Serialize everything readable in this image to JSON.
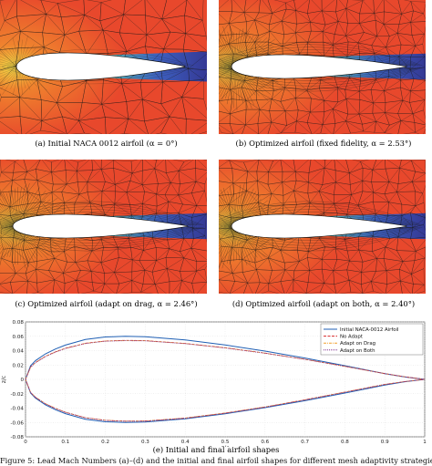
{
  "panels": [
    {
      "caption": "(a)  Initial NACA 0012 airfoil (α = 0°)"
    },
    {
      "caption": "(b)  Optimized airfoil (fixed fidelity, α = 2.53°)"
    },
    {
      "caption": "(c)  Optimized airfoil (adapt on drag, α = 2.46°)"
    },
    {
      "caption": "(d)  Optimized airfoil (adapt on both, α = 2.40°)"
    }
  ],
  "shapes_caption": "(e)  Initial and final airfoil shapes",
  "figure_caption": "Figure 5: Lead Mach Numbers (a)–(d) and the initial and final airfoil shapes for different mesh adaptivity strategies",
  "colors": {
    "field": "#e8482c",
    "mesh": "#1a1a1a",
    "wake": "#1f63d8",
    "airfoil": "#ffffff"
  },
  "chart_data": {
    "type": "line",
    "xlabel": "x/c",
    "ylabel": "z/c",
    "xlim": [
      0,
      1
    ],
    "ylim": [
      -0.08,
      0.08
    ],
    "xticks": [
      "0",
      "0.1",
      "0.2",
      "0.3",
      "0.4",
      "0.5",
      "0.6",
      "0.7",
      "0.8",
      "0.9",
      "1"
    ],
    "yticks": [
      "0.08",
      "0.06",
      "0.04",
      "0.02",
      "0",
      "-0.02",
      "-0.04",
      "-0.06",
      "-0.08"
    ],
    "grid": true,
    "legend_position": "top-right",
    "x": [
      0,
      0.0125,
      0.025,
      0.05,
      0.075,
      0.1,
      0.15,
      0.2,
      0.25,
      0.3,
      0.4,
      0.5,
      0.6,
      0.7,
      0.8,
      0.9,
      0.95,
      1.0
    ],
    "series": [
      {
        "name": "Initial NACA-0012 Airfoil",
        "color": "#1f5fb4",
        "dash": "solid",
        "upper": [
          0,
          0.0189,
          0.0261,
          0.0355,
          0.0423,
          0.0477,
          0.0555,
          0.059,
          0.0599,
          0.0594,
          0.0548,
          0.0479,
          0.0394,
          0.0297,
          0.019,
          0.008,
          0.0033,
          0.0
        ],
        "lower": [
          0,
          -0.0189,
          -0.0261,
          -0.0355,
          -0.0423,
          -0.0477,
          -0.0555,
          -0.059,
          -0.0599,
          -0.0594,
          -0.0548,
          -0.0479,
          -0.0394,
          -0.0297,
          -0.019,
          -0.008,
          -0.0033,
          0.0
        ]
      },
      {
        "name": "No Adapt",
        "color": "#d62728",
        "dash": "dash",
        "upper": [
          0,
          0.0171,
          0.0236,
          0.0322,
          0.0384,
          0.0433,
          0.0503,
          0.0535,
          0.0543,
          0.054,
          0.05,
          0.044,
          0.0366,
          0.028,
          0.0182,
          0.008,
          0.0035,
          0.0
        ],
        "lower": [
          0,
          -0.0181,
          -0.025,
          -0.034,
          -0.0405,
          -0.0458,
          -0.0534,
          -0.057,
          -0.0582,
          -0.058,
          -0.054,
          -0.047,
          -0.0385,
          -0.0285,
          -0.0178,
          -0.007,
          -0.003,
          0.0
        ]
      },
      {
        "name": "Adapt on Drag",
        "color": "#f2a12c",
        "dash": "dashdot",
        "upper": [
          0,
          0.0169,
          0.0234,
          0.032,
          0.0382,
          0.0431,
          0.0501,
          0.0533,
          0.0541,
          0.0538,
          0.0499,
          0.0439,
          0.0365,
          0.0279,
          0.0182,
          0.008,
          0.0035,
          0.0
        ],
        "lower": [
          0,
          -0.018,
          -0.0249,
          -0.0339,
          -0.0404,
          -0.0457,
          -0.0533,
          -0.0569,
          -0.0581,
          -0.0579,
          -0.0539,
          -0.0469,
          -0.0384,
          -0.0284,
          -0.0177,
          -0.007,
          -0.003,
          0.0
        ]
      },
      {
        "name": "Adapt on Both",
        "color": "#7e2f8e",
        "dash": "dot",
        "upper": [
          0,
          0.0168,
          0.0233,
          0.0318,
          0.038,
          0.0429,
          0.0499,
          0.0531,
          0.0539,
          0.0536,
          0.0497,
          0.0437,
          0.0363,
          0.0278,
          0.0181,
          0.008,
          0.0035,
          0.0
        ],
        "lower": [
          0,
          -0.0182,
          -0.0251,
          -0.0341,
          -0.0406,
          -0.0459,
          -0.0535,
          -0.0571,
          -0.0583,
          -0.0581,
          -0.0541,
          -0.0471,
          -0.0386,
          -0.0286,
          -0.0179,
          -0.0071,
          -0.003,
          0.0
        ]
      }
    ]
  }
}
